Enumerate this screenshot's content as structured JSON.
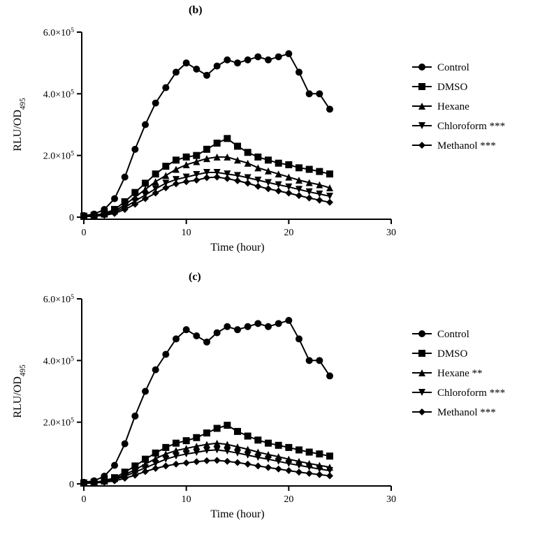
{
  "panel_b": {
    "label": "(b)",
    "label_fontsize": 16,
    "label_fontweight": "bold",
    "chart": {
      "type": "line",
      "xlabel": "Time (hour)",
      "ylabel_plain": "RLU/OD",
      "ylabel_sub": "495",
      "xlim": [
        0,
        30
      ],
      "ylim": [
        0,
        600000
      ],
      "xtick_step": 10,
      "ytick_step": 200000,
      "xtick_labels": [
        "0",
        "10",
        "20",
        "30"
      ],
      "ytick_labels": [
        "0",
        "2.0×10",
        "4.0×10",
        "6.0×10"
      ],
      "ytick_exp": "5",
      "label_fontsize": 16,
      "tick_fontsize": 14,
      "axis_color": "#000000",
      "background_color": "#ffffff",
      "line_color": "#000000",
      "line_width": 2,
      "marker_size": 5,
      "series": [
        {
          "name": "Control",
          "marker": "circle",
          "x": [
            0,
            1,
            2,
            3,
            4,
            5,
            6,
            7,
            8,
            9,
            10,
            11,
            12,
            13,
            14,
            15,
            16,
            17,
            18,
            19,
            20,
            21,
            22,
            23,
            24
          ],
          "y": [
            5000,
            10000,
            25000,
            60000,
            130000,
            220000,
            300000,
            370000,
            420000,
            470000,
            500000,
            480000,
            460000,
            490000,
            510000,
            500000,
            510000,
            520000,
            510000,
            520000,
            530000,
            470000,
            400000,
            400000,
            350000
          ]
        },
        {
          "name": "DMSO",
          "marker": "square",
          "x": [
            0,
            1,
            2,
            3,
            4,
            5,
            6,
            7,
            8,
            9,
            10,
            11,
            12,
            13,
            14,
            15,
            16,
            17,
            18,
            19,
            20,
            21,
            22,
            23,
            24
          ],
          "y": [
            3000,
            6000,
            12000,
            25000,
            50000,
            80000,
            110000,
            140000,
            165000,
            185000,
            195000,
            200000,
            220000,
            240000,
            255000,
            230000,
            210000,
            195000,
            185000,
            175000,
            170000,
            160000,
            155000,
            148000,
            140000
          ]
        },
        {
          "name": "Hexane",
          "marker": "triangle",
          "x": [
            0,
            1,
            2,
            3,
            4,
            5,
            6,
            7,
            8,
            9,
            10,
            11,
            12,
            13,
            14,
            15,
            16,
            17,
            18,
            19,
            20,
            21,
            22,
            23,
            24
          ],
          "y": [
            2500,
            5000,
            10000,
            20000,
            40000,
            65000,
            90000,
            115000,
            135000,
            155000,
            170000,
            180000,
            190000,
            195000,
            195000,
            185000,
            175000,
            160000,
            150000,
            140000,
            130000,
            120000,
            112000,
            105000,
            95000
          ]
        },
        {
          "name": "Chloroform ***",
          "marker": "invtriangle",
          "x": [
            0,
            1,
            2,
            3,
            4,
            5,
            6,
            7,
            8,
            9,
            10,
            11,
            12,
            13,
            14,
            15,
            16,
            17,
            18,
            19,
            20,
            21,
            22,
            23,
            24
          ],
          "y": [
            2000,
            4000,
            8000,
            16000,
            32000,
            52000,
            72000,
            92000,
            110000,
            122000,
            130000,
            138000,
            145000,
            145000,
            140000,
            135000,
            128000,
            120000,
            112000,
            105000,
            98000,
            90000,
            82000,
            75000,
            68000
          ]
        },
        {
          "name": "Methanol ***",
          "marker": "diamond",
          "x": [
            0,
            1,
            2,
            3,
            4,
            5,
            6,
            7,
            8,
            9,
            10,
            11,
            12,
            13,
            14,
            15,
            16,
            17,
            18,
            19,
            20,
            21,
            22,
            23,
            24
          ],
          "y": [
            1500,
            3000,
            6000,
            12000,
            25000,
            42000,
            60000,
            78000,
            95000,
            108000,
            115000,
            120000,
            128000,
            130000,
            125000,
            118000,
            110000,
            100000,
            92000,
            85000,
            78000,
            70000,
            62000,
            55000,
            48000
          ]
        }
      ],
      "legend_fontsize": 15
    }
  },
  "panel_c": {
    "label": "(c)",
    "label_fontsize": 16,
    "label_fontweight": "bold",
    "chart": {
      "type": "line",
      "xlabel": "Time (hour)",
      "ylabel_plain": "RLU/OD",
      "ylabel_sub": "495",
      "xlim": [
        0,
        30
      ],
      "ylim": [
        0,
        600000
      ],
      "xtick_step": 10,
      "ytick_step": 200000,
      "xtick_labels": [
        "0",
        "10",
        "20",
        "30"
      ],
      "ytick_labels": [
        "0",
        "2.0×10",
        "4.0×10",
        "6.0×10"
      ],
      "ytick_exp": "5",
      "label_fontsize": 16,
      "tick_fontsize": 14,
      "axis_color": "#000000",
      "background_color": "#ffffff",
      "line_color": "#000000",
      "line_width": 2,
      "marker_size": 5,
      "series": [
        {
          "name": "Control",
          "marker": "circle",
          "x": [
            0,
            1,
            2,
            3,
            4,
            5,
            6,
            7,
            8,
            9,
            10,
            11,
            12,
            13,
            14,
            15,
            16,
            17,
            18,
            19,
            20,
            21,
            22,
            23,
            24
          ],
          "y": [
            5000,
            10000,
            25000,
            60000,
            130000,
            220000,
            300000,
            370000,
            420000,
            470000,
            500000,
            480000,
            460000,
            490000,
            510000,
            500000,
            510000,
            520000,
            510000,
            520000,
            530000,
            470000,
            400000,
            400000,
            350000
          ]
        },
        {
          "name": "DMSO",
          "marker": "square",
          "x": [
            0,
            1,
            2,
            3,
            4,
            5,
            6,
            7,
            8,
            9,
            10,
            11,
            12,
            13,
            14,
            15,
            16,
            17,
            18,
            19,
            20,
            21,
            22,
            23,
            24
          ],
          "y": [
            3000,
            5000,
            10000,
            20000,
            38000,
            58000,
            80000,
            100000,
            118000,
            132000,
            140000,
            150000,
            165000,
            180000,
            190000,
            170000,
            155000,
            142000,
            132000,
            125000,
            118000,
            110000,
            103000,
            97000,
            90000
          ]
        },
        {
          "name": "Hexane **",
          "marker": "triangle",
          "x": [
            0,
            1,
            2,
            3,
            4,
            5,
            6,
            7,
            8,
            9,
            10,
            11,
            12,
            13,
            14,
            15,
            16,
            17,
            18,
            19,
            20,
            21,
            22,
            23,
            24
          ],
          "y": [
            2500,
            4500,
            9000,
            17000,
            30000,
            46000,
            64000,
            82000,
            97000,
            108000,
            115000,
            122000,
            128000,
            132000,
            128000,
            120000,
            112000,
            103000,
            95000,
            88000,
            80000,
            73000,
            66000,
            60000,
            54000
          ]
        },
        {
          "name": "Chloroform ***",
          "marker": "invtriangle",
          "x": [
            0,
            1,
            2,
            3,
            4,
            5,
            6,
            7,
            8,
            9,
            10,
            11,
            12,
            13,
            14,
            15,
            16,
            17,
            18,
            19,
            20,
            21,
            22,
            23,
            24
          ],
          "y": [
            2000,
            3800,
            7500,
            14000,
            25000,
            38000,
            52000,
            66000,
            80000,
            90000,
            97000,
            102000,
            108000,
            110000,
            106000,
            100000,
            93000,
            86000,
            80000,
            73000,
            66000,
            60000,
            54000,
            48000,
            43000
          ]
        },
        {
          "name": "Methanol ***",
          "marker": "diamond",
          "x": [
            0,
            1,
            2,
            3,
            4,
            5,
            6,
            7,
            8,
            9,
            10,
            11,
            12,
            13,
            14,
            15,
            16,
            17,
            18,
            19,
            20,
            21,
            22,
            23,
            24
          ],
          "y": [
            1500,
            2800,
            5500,
            10000,
            18000,
            28000,
            40000,
            50000,
            58000,
            64000,
            68000,
            72000,
            75000,
            76000,
            73000,
            69000,
            64000,
            58000,
            53000,
            48000,
            43000,
            38000,
            34000,
            30000,
            26000
          ]
        }
      ],
      "legend_fontsize": 15
    }
  }
}
